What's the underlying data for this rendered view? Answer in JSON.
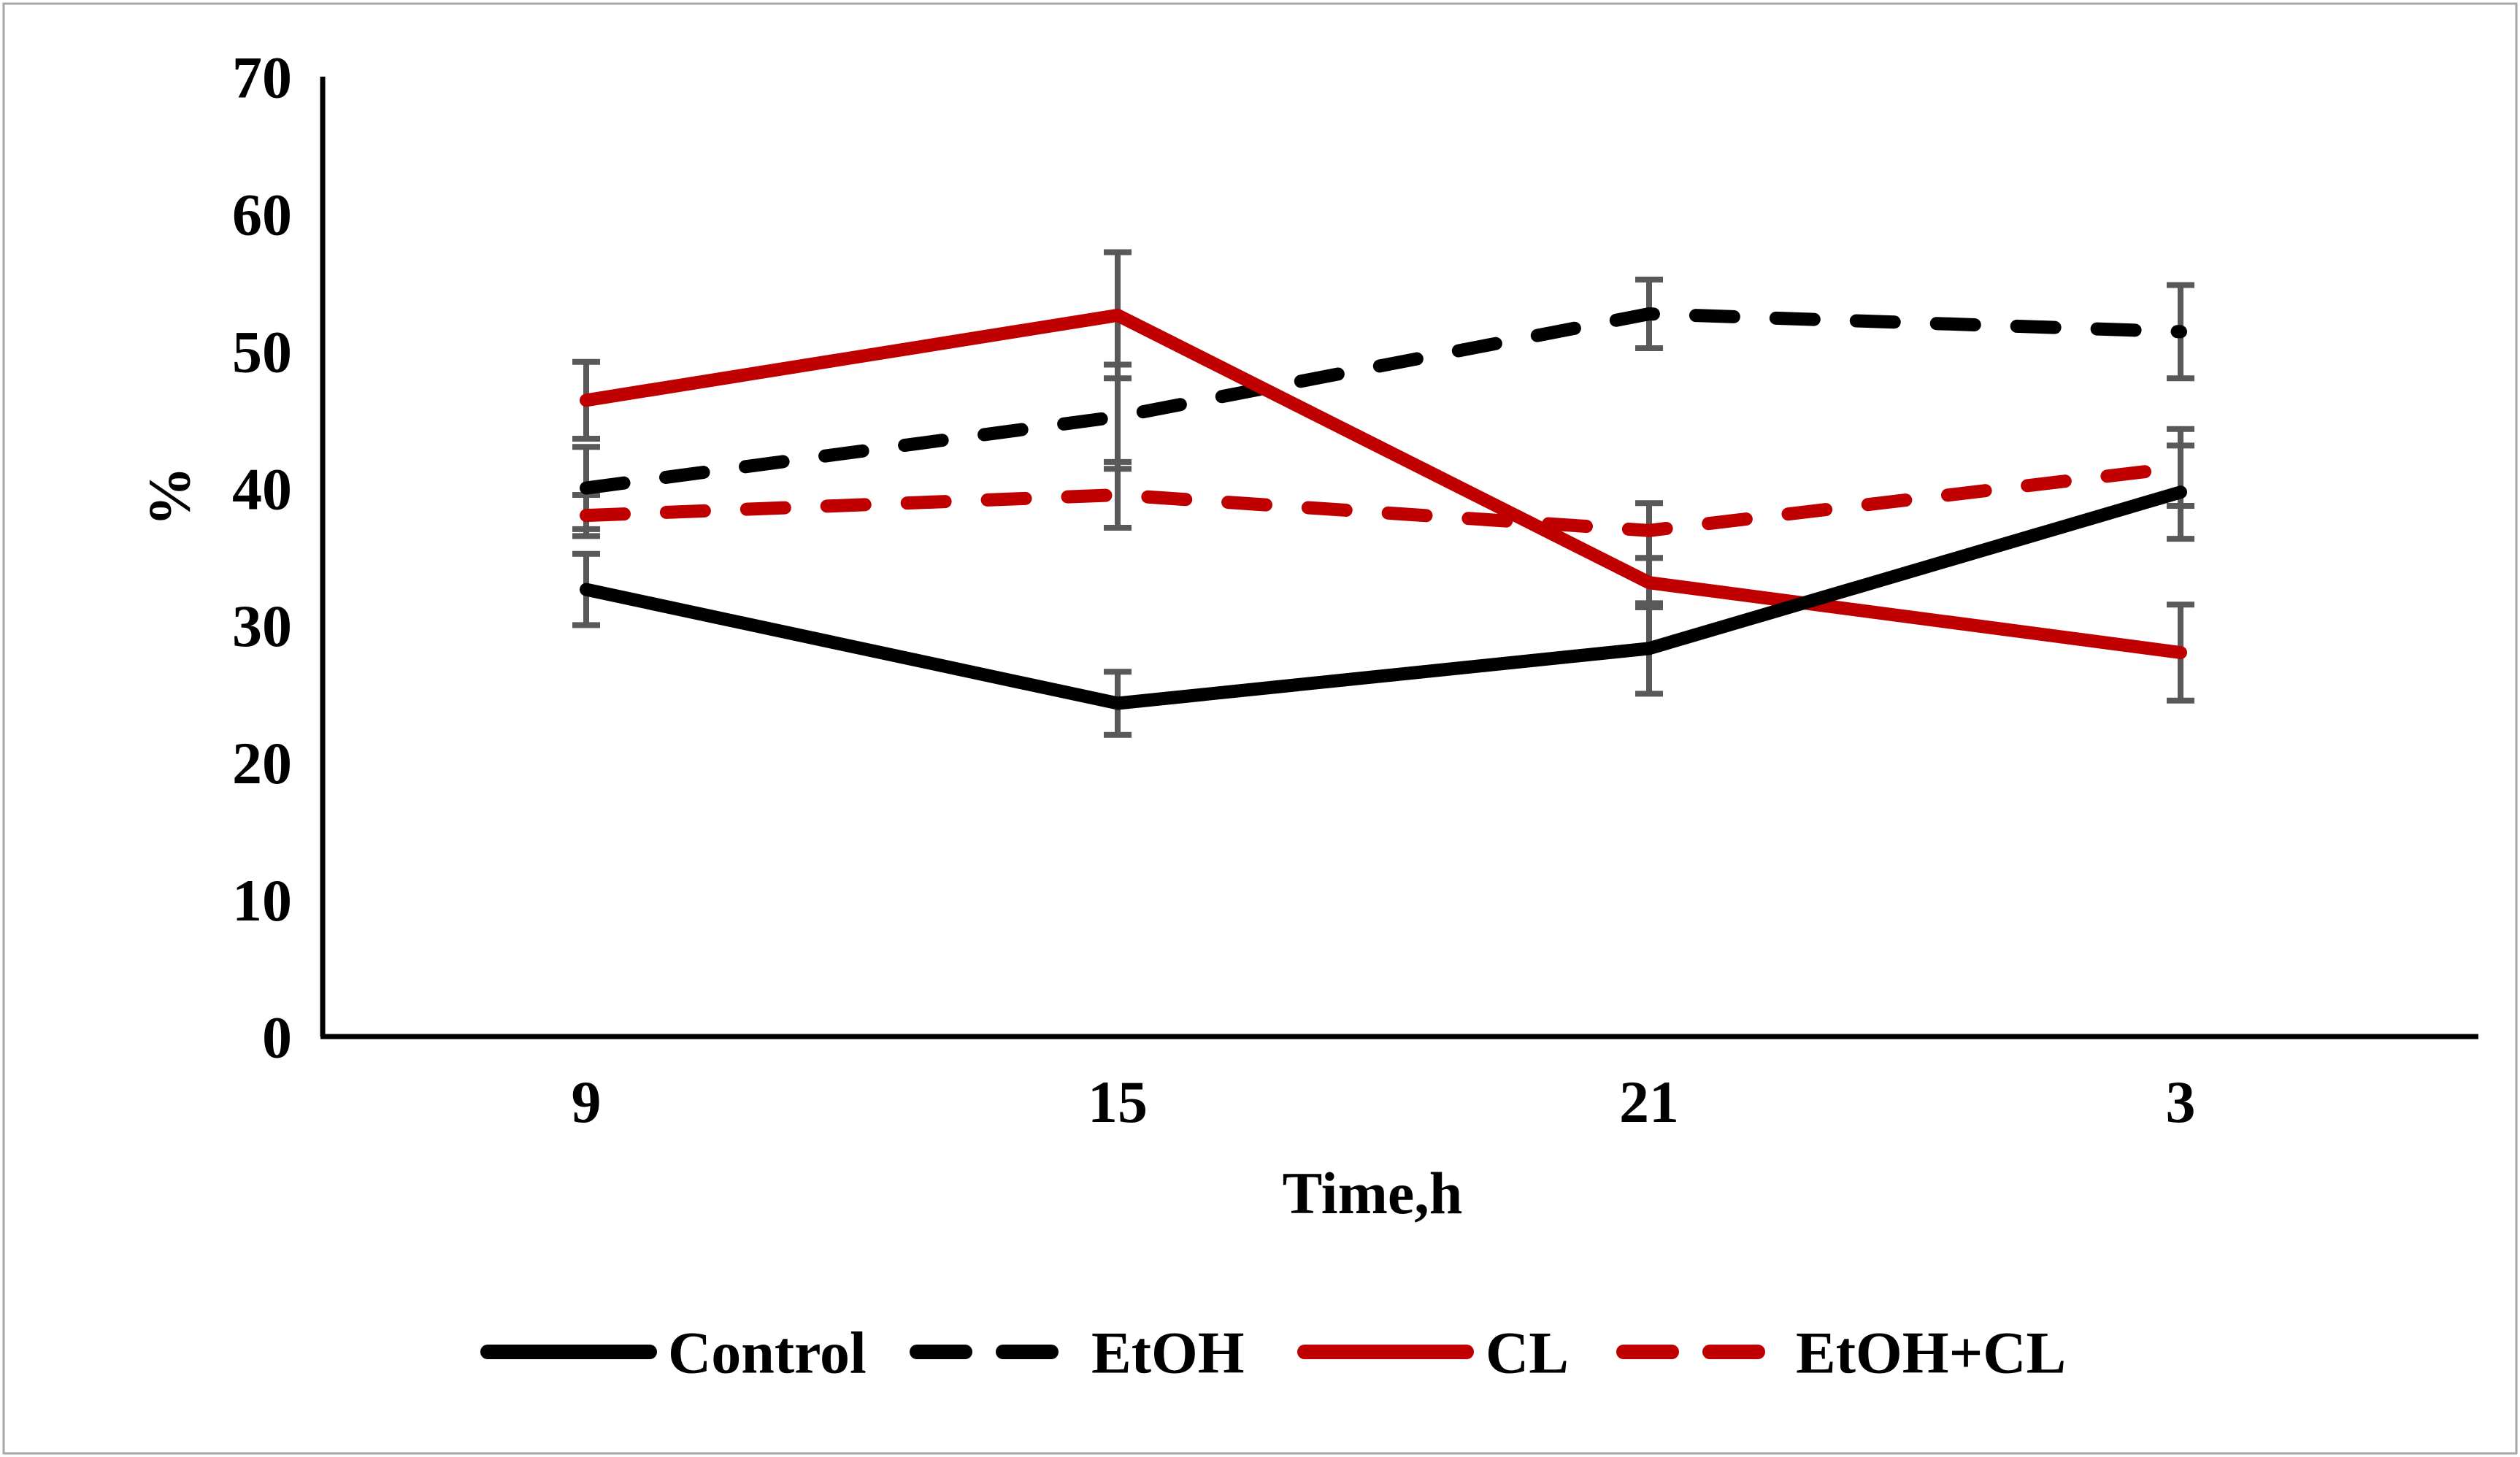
{
  "figure": {
    "background": "#ffffff",
    "border_color": "#a6a6a6"
  },
  "chart_data": {
    "type": "line",
    "title": "",
    "xlabel": "Time,h",
    "ylabel": "%",
    "categories": [
      "9",
      "15",
      "21",
      "3"
    ],
    "yticks": [
      "0",
      "10",
      "20",
      "30",
      "40",
      "50",
      "60",
      "70"
    ],
    "ylim": [
      0,
      70
    ],
    "ytick_step": 10,
    "grid": false,
    "legend_position": "bottom",
    "axis_color": "#000000",
    "error_bar_color": "#595959",
    "series": [
      {
        "name": "Control",
        "color": "#000000",
        "style": "solid",
        "values": [
          32.6,
          24.3,
          28.3,
          39.7
        ],
        "errors": [
          2.6,
          2.3,
          3.3,
          3.4
        ]
      },
      {
        "name": "EtOH",
        "color": "#000000",
        "style": "dashed",
        "values": [
          40.0,
          45.2,
          52.7,
          51.4
        ],
        "errors": [
          3.0,
          3.8,
          2.5,
          3.4
        ]
      },
      {
        "name": "CL",
        "color": "#c00000",
        "style": "solid",
        "values": [
          46.4,
          52.6,
          33.1,
          28.0
        ],
        "errors": [
          2.8,
          4.6,
          1.8,
          3.5
        ]
      },
      {
        "name": "EtOH+CL",
        "color": "#c00000",
        "style": "dashed",
        "values": [
          38.0,
          39.5,
          36.9,
          41.5
        ],
        "errors": [
          1.5,
          2.4,
          2.0,
          2.8
        ]
      }
    ]
  }
}
